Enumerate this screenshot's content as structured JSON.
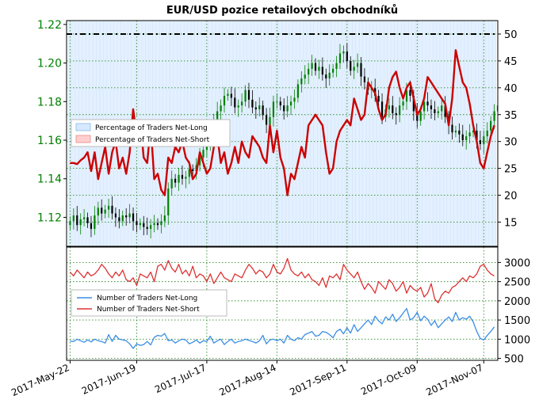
{
  "chart_data": [
    {
      "type": "candlestick+line",
      "title": "EUR/USD pozice retailových obchodníků",
      "x_tick_labels": [
        "2017-May-22",
        "2017-Jun-19",
        "2017-Jul-17",
        "2017-Aug-14",
        "2017-Sep-11",
        "2017-Oct-09",
        "2017-Nov-07"
      ],
      "left_axis": {
        "ticks": [
          "1.12",
          "1.14",
          "1.16",
          "1.18",
          "1.20",
          "1.22"
        ],
        "ylim": [
          1.105,
          1.222
        ],
        "color": "#008000"
      },
      "right_axis": {
        "ticks": [
          "15",
          "20",
          "25",
          "30",
          "35",
          "40",
          "45",
          "50"
        ],
        "ylim": [
          10.5,
          52.5
        ]
      },
      "reference_line": 50,
      "legend": {
        "position": "middle-left",
        "entries": [
          "Percentage of Traders Net-Long",
          "Percentage of Traders Net-Short"
        ]
      },
      "colors": {
        "up": "#008000",
        "down": "#000000",
        "net_short_line": "#cc0000",
        "short_fill": "#ffdede",
        "long_fill": "#e3f0ff",
        "grid": "#2e8b2e"
      },
      "price_close": [
        1.118,
        1.121,
        1.116,
        1.119,
        1.12,
        1.117,
        1.114,
        1.121,
        1.125,
        1.122,
        1.124,
        1.126,
        1.122,
        1.12,
        1.118,
        1.121,
        1.12,
        1.122,
        1.118,
        1.116,
        1.117,
        1.115,
        1.114,
        1.116,
        1.117,
        1.116,
        1.118,
        1.121,
        1.135,
        1.14,
        1.138,
        1.142,
        1.14,
        1.141,
        1.145,
        1.144,
        1.147,
        1.151,
        1.155,
        1.157,
        1.165,
        1.17,
        1.175,
        1.178,
        1.183,
        1.184,
        1.182,
        1.177,
        1.178,
        1.18,
        1.186,
        1.181,
        1.177,
        1.176,
        1.178,
        1.173,
        1.168,
        1.172,
        1.18,
        1.18,
        1.178,
        1.175,
        1.178,
        1.18,
        1.182,
        1.189,
        1.192,
        1.194,
        1.197,
        1.2,
        1.196,
        1.198,
        1.194,
        1.192,
        1.195,
        1.197,
        1.2,
        1.205,
        1.206,
        1.201,
        1.196,
        1.198,
        1.2,
        1.193,
        1.19,
        1.186,
        1.187,
        1.183,
        1.18,
        1.172,
        1.176,
        1.178,
        1.174,
        1.173,
        1.178,
        1.18,
        1.186,
        1.183,
        1.175,
        1.17,
        1.175,
        1.18,
        1.178,
        1.176,
        1.174,
        1.175,
        1.178,
        1.172,
        1.168,
        1.164,
        1.165,
        1.163,
        1.16,
        1.162,
        1.164,
        1.165,
        1.16,
        1.158,
        1.162,
        1.165,
        1.17,
        1.175,
        1.178,
        1.18
      ],
      "net_short_pct": [
        26,
        26,
        25.8,
        26.5,
        27,
        28,
        24.5,
        28,
        23,
        26,
        29,
        24,
        28,
        30,
        25,
        27,
        24,
        28,
        36,
        31,
        34,
        27,
        26,
        33,
        23,
        24,
        21,
        20,
        27,
        26,
        29,
        28,
        30,
        27,
        26,
        23,
        24,
        28,
        26,
        24,
        25,
        29,
        31,
        26,
        28,
        24,
        26,
        29,
        26,
        30,
        28,
        27,
        31,
        30,
        29,
        27,
        26,
        33,
        28,
        32,
        27,
        25,
        20,
        24,
        23,
        26,
        29,
        27,
        33,
        34,
        35,
        34,
        33,
        28,
        24,
        25,
        30,
        32,
        33,
        34,
        33,
        38,
        36,
        34,
        35,
        41,
        40,
        39,
        36,
        34,
        35,
        40,
        42,
        43,
        40,
        38,
        40,
        41,
        38,
        35,
        36,
        38,
        42,
        41,
        40,
        39,
        38,
        37,
        33,
        38,
        47,
        44,
        41,
        40,
        37,
        33,
        30,
        26,
        25,
        28,
        31,
        33
      ]
    },
    {
      "type": "line",
      "legend": {
        "position": "upper-left",
        "entries": [
          "Number of Traders Net-Long",
          "Number of Traders Net-Short"
        ]
      },
      "right_axis": {
        "ticks": [
          "500",
          "1000",
          "1500",
          "2000",
          "2500",
          "3000"
        ],
        "ylim": [
          450,
          3400
        ]
      },
      "series": [
        {
          "name": "Number of Traders Net-Long",
          "color": "#3b8ee6",
          "values": [
            950,
            940,
            1000,
            960,
            920,
            980,
            930,
            1000,
            960,
            940,
            900,
            1120,
            940,
            1100,
            1000,
            980,
            960,
            880,
            760,
            880,
            840,
            860,
            940,
            850,
            1050,
            1100,
            1080,
            1150,
            960,
            980,
            900,
            960,
            1000,
            980,
            880,
            920,
            980,
            900,
            960,
            940,
            1080,
            900,
            960,
            1000,
            860,
            940,
            1000,
            900,
            940,
            960,
            1000,
            970,
            940,
            900,
            960,
            1100,
            880,
            980,
            1000,
            960,
            1000,
            900,
            1100,
            1000,
            960,
            1040,
            1000,
            1120,
            1160,
            1200,
            1080,
            1100,
            1200,
            1180,
            1120,
            1040,
            1200,
            1260,
            1140,
            1300,
            1160,
            1380,
            1200,
            1300,
            1400,
            1500,
            1380,
            1600,
            1480,
            1400,
            1580,
            1500,
            1650,
            1460,
            1560,
            1680,
            1800,
            1500,
            1560,
            1700,
            1480,
            1600,
            1520,
            1360,
            1480,
            1300,
            1400,
            1500,
            1580,
            1460,
            1700,
            1500,
            1560,
            1520,
            1600,
            1450,
            1200,
            1020,
            980,
            1100,
            1200,
            1320
          ]
        },
        {
          "name": "Number of Traders Net-Short",
          "color": "#dd3333",
          "values": [
            2750,
            2650,
            2800,
            2700,
            2600,
            2750,
            2650,
            2700,
            2800,
            2950,
            2850,
            2700,
            2600,
            2750,
            2650,
            2800,
            2550,
            2500,
            2600,
            2400,
            2700,
            2650,
            2600,
            2750,
            2500,
            2900,
            2950,
            2800,
            3050,
            2850,
            2750,
            2950,
            2700,
            2800,
            2650,
            2900,
            2600,
            2700,
            2650,
            2500,
            2700,
            2450,
            2600,
            2750,
            2600,
            2550,
            2500,
            2700,
            2650,
            2600,
            2800,
            2950,
            2850,
            2700,
            2800,
            2750,
            2600,
            2700,
            2950,
            2750,
            2700,
            2850,
            3100,
            2800,
            2700,
            2650,
            2750,
            2600,
            2700,
            2550,
            2500,
            2400,
            2600,
            2350,
            2650,
            2600,
            2700,
            2550,
            2950,
            2800,
            2700,
            2600,
            2750,
            2500,
            2300,
            2450,
            2350,
            2200,
            2500,
            2400,
            2300,
            2550,
            2450,
            2250,
            2350,
            2500,
            2200,
            2400,
            2300,
            2250,
            2350,
            2100,
            2200,
            2450,
            2050,
            1950,
            2150,
            2250,
            2200,
            2350,
            2400,
            2500,
            2600,
            2500,
            2650,
            2600,
            2700,
            2900,
            2950,
            2800,
            2700,
            2650
          ]
        }
      ]
    }
  ]
}
